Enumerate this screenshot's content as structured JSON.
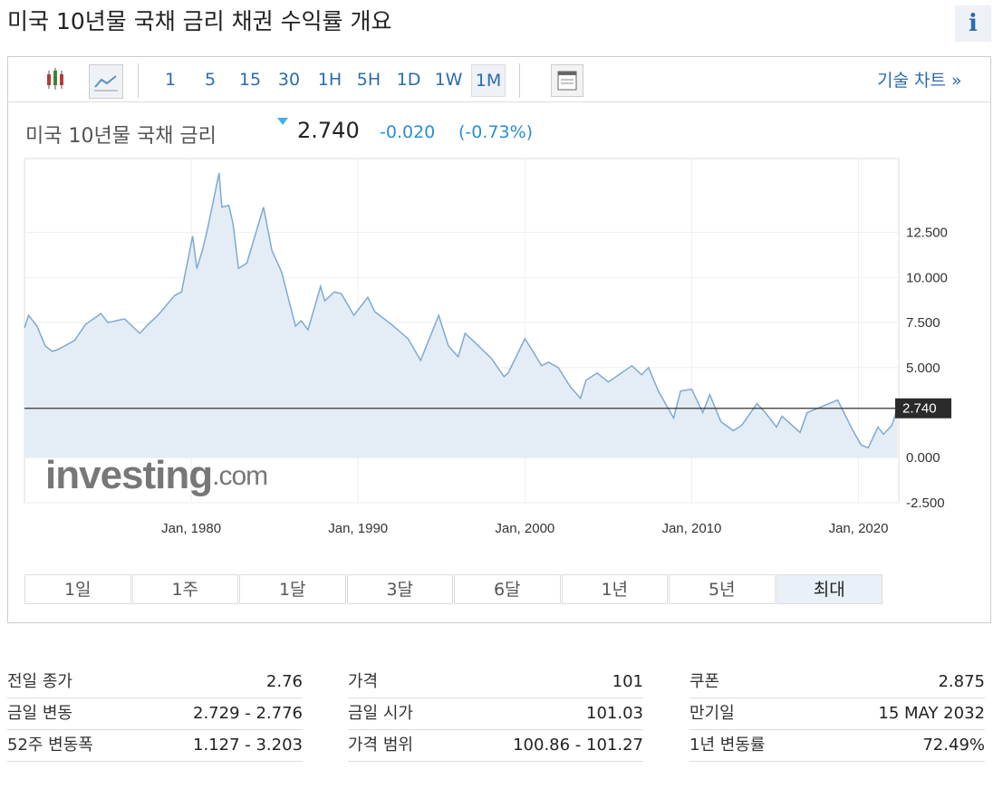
{
  "page_title": "미국 10년물 국채 금리  채권 수익률 개요",
  "info_icon": "i",
  "toolbar": {
    "intervals": [
      "1",
      "5",
      "15",
      "30",
      "1H",
      "5H",
      "1D",
      "1W",
      "1M"
    ],
    "tech_chart": "기술 차트 »"
  },
  "quote": {
    "name": "미국 10년물 국채 금리",
    "price": "2.740",
    "change": "-0.020",
    "change_pct": "(-0.73%)"
  },
  "chart_data": {
    "type": "line",
    "watermark": [
      "investing",
      ".com"
    ],
    "x": [
      "1970-01",
      "1970-04",
      "1970-10",
      "1971-04",
      "1971-09",
      "1972-01",
      "1973-01",
      "1973-09",
      "1974-08",
      "1975-01",
      "1976-01",
      "1976-12",
      "1977-06",
      "1978-01",
      "1979-01",
      "1979-06",
      "1980-02",
      "1980-05",
      "1980-09",
      "1981-01",
      "1981-09",
      "1981-11",
      "1982-04",
      "1982-07",
      "1982-11",
      "1983-05",
      "1984-05",
      "1984-11",
      "1985-06",
      "1986-04",
      "1986-08",
      "1987-01",
      "1987-10",
      "1988-01",
      "1988-08",
      "1989-01",
      "1989-10",
      "1990-08",
      "1991-01",
      "1992-01",
      "1993-01",
      "1993-10",
      "1994-11",
      "1995-06",
      "1996-01",
      "1996-06",
      "1997-01",
      "1998-01",
      "1998-10",
      "1999-01",
      "2000-01",
      "2000-06",
      "2001-01",
      "2001-06",
      "2002-01",
      "2002-10",
      "2003-05",
      "2003-09",
      "2004-05",
      "2005-01",
      "2006-06",
      "2007-01",
      "2007-06",
      "2008-01",
      "2008-12",
      "2009-05",
      "2010-01",
      "2010-09",
      "2011-02",
      "2011-10",
      "2012-07",
      "2013-01",
      "2013-12",
      "2014-06",
      "2015-02",
      "2015-06",
      "2016-07",
      "2016-12",
      "2018-10",
      "2019-09",
      "2020-03",
      "2020-08",
      "2021-03",
      "2021-07",
      "2022-01",
      "2022-05"
    ],
    "series": [
      {
        "color": "#7fa9d1",
        "values": [
          7.2,
          7.9,
          7.3,
          6.2,
          5.9,
          6.0,
          6.5,
          7.4,
          8.0,
          7.5,
          7.7,
          6.9,
          7.4,
          7.9,
          9.0,
          9.2,
          12.3,
          10.5,
          11.5,
          12.8,
          15.8,
          13.9,
          14.0,
          13.0,
          10.5,
          10.8,
          13.9,
          11.5,
          10.3,
          7.3,
          7.6,
          7.1,
          9.5,
          8.7,
          9.2,
          9.1,
          7.9,
          8.9,
          8.1,
          7.4,
          6.6,
          5.4,
          7.9,
          6.2,
          5.6,
          6.9,
          6.4,
          5.5,
          4.5,
          4.7,
          6.6,
          6.0,
          5.1,
          5.3,
          5.0,
          3.9,
          3.3,
          4.3,
          4.7,
          4.2,
          5.1,
          4.6,
          5.0,
          3.7,
          2.2,
          3.7,
          3.8,
          2.5,
          3.5,
          2.0,
          1.5,
          1.8,
          3.0,
          2.5,
          1.7,
          2.3,
          1.4,
          2.5,
          3.2,
          1.5,
          0.7,
          0.55,
          1.7,
          1.3,
          1.8,
          2.74
        ]
      }
    ],
    "area_color": "#e4edf5",
    "xlim": [
      "1970-01",
      "2022-06"
    ],
    "xticks": [
      {
        "value": "1980-01",
        "label": "Jan, 1980"
      },
      {
        "value": "1990-01",
        "label": "Jan, 1990"
      },
      {
        "value": "2000-01",
        "label": "Jan, 2000"
      },
      {
        "value": "2010-01",
        "label": "Jan, 2010"
      },
      {
        "value": "2020-01",
        "label": "Jan, 2020"
      }
    ],
    "ylim": [
      -2.5,
      16.6
    ],
    "yticks": [
      {
        "value": -2.5,
        "label": "-2.500"
      },
      {
        "value": 0,
        "label": "0.000"
      },
      {
        "value": 5,
        "label": "5.000"
      },
      {
        "value": 7.5,
        "label": "7.500"
      },
      {
        "value": 10,
        "label": "10.000"
      },
      {
        "value": 12.5,
        "label": "12.500"
      }
    ],
    "current_line": {
      "value": 2.74,
      "label": "2.740"
    },
    "grid": true
  },
  "ranges": [
    "1일",
    "1주",
    "1달",
    "3달",
    "6달",
    "1년",
    "5년",
    "최대"
  ],
  "stats": [
    [
      {
        "label": "전일 종가",
        "value": "2.76"
      },
      {
        "label": "금일 변동",
        "value": "2.729 - 2.776"
      },
      {
        "label": "52주 변동폭",
        "value": "1.127 - 3.203"
      }
    ],
    [
      {
        "label": "가격",
        "value": "101"
      },
      {
        "label": "금일 시가",
        "value": "101.03"
      },
      {
        "label": "가격 범위",
        "value": "100.86 - 101.27"
      }
    ],
    [
      {
        "label": "쿠폰",
        "value": "2.875"
      },
      {
        "label": "만기일",
        "value": "15 MAY 2032"
      },
      {
        "label": "1년 변동률",
        "value": "72.49%"
      }
    ]
  ]
}
